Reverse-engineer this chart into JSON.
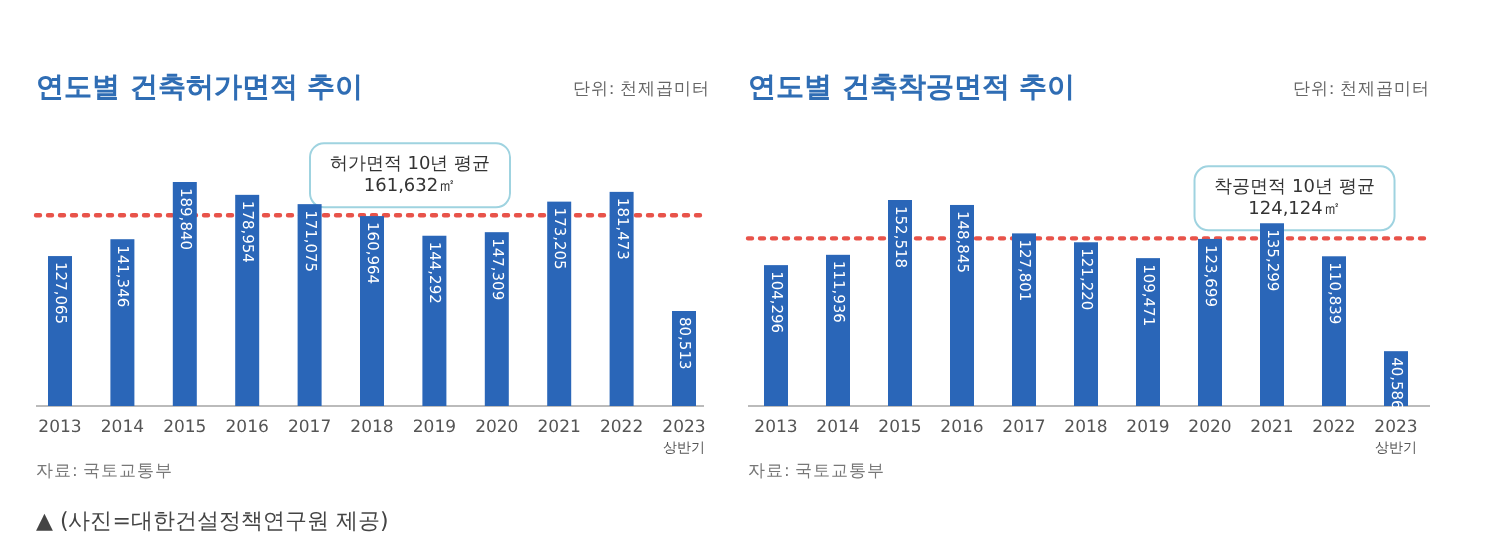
{
  "chart_data": [
    {
      "type": "bar",
      "title": "연도별 건축허가면적 추이",
      "categories": [
        "2013",
        "2014",
        "2015",
        "2016",
        "2017",
        "2018",
        "2019",
        "2020",
        "2021",
        "2022",
        "2023 상반기"
      ],
      "series": [
        {
          "color": "#2a66b8",
          "values": [
            127065,
            141346,
            189840,
            178954,
            171075,
            160964,
            144292,
            147309,
            173205,
            181473,
            80513
          ],
          "value_labels": [
            "127,065",
            "141,346",
            "189,840",
            "178,954",
            "171,075",
            "160,964",
            "144,292",
            "147,309",
            "173,205",
            "181,473",
            "80,513"
          ]
        }
      ],
      "ref_lines": [
        {
          "axis": "y",
          "value": 161632,
          "label": "허가면적 10년 평균\n161,632㎡",
          "color": "#e8534a",
          "line_style": "dotted"
        }
      ],
      "annotations": [
        "단위: 천제곱미터",
        "자료: 국토교통부",
        "▲ (사진=대한건설정책연구원 제공)"
      ]
    },
    {
      "type": "bar",
      "title": "연도별 건축착공면적 추이",
      "categories": [
        "2013",
        "2014",
        "2015",
        "2016",
        "2017",
        "2018",
        "2019",
        "2020",
        "2021",
        "2022",
        "2023 상반기"
      ],
      "series": [
        {
          "color": "#2a66b8",
          "values": [
            104296,
            111936,
            152518,
            148845,
            127801,
            121220,
            109471,
            123699,
            135299,
            110839,
            40586
          ],
          "value_labels": [
            "104,296",
            "111,936",
            "152,518",
            "148,845",
            "127,801",
            "121,220",
            "109,471",
            "123,699",
            "135,299",
            "110,839",
            "40,586"
          ]
        }
      ],
      "ref_lines": [
        {
          "axis": "y",
          "value": 124124,
          "label": "착공면적 10년 평균\n124,124㎡",
          "color": "#e8534a",
          "line_style": "dotted"
        }
      ],
      "annotations": [
        "단위: 천제곱미터",
        "자료: 국토교통부"
      ]
    }
  ]
}
